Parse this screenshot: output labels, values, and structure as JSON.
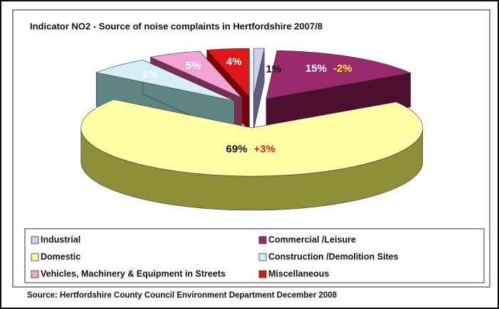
{
  "chart_data": {
    "type": "pie3d",
    "title": "Indicator NO2 - Source of noise complaints in Hertfordshire 2007/8",
    "categories": [
      "Industrial",
      "Commercial /Leisure",
      "Domestic",
      "Construction /Demolition Sites",
      "Vehicles, Machinery & Equipment in Streets",
      "Miscellaneous"
    ],
    "values": [
      1,
      15,
      69,
      6,
      5,
      4
    ],
    "value_labels": [
      "1%",
      "15%",
      "69%",
      "6%",
      "5%",
      "4%"
    ],
    "colors": [
      "#cfcfee",
      "#9b2a6c",
      "#ffffa6",
      "#d6eff6",
      "#f2a4d2",
      "#e0161a"
    ],
    "side_colors": [
      "#5c5c84",
      "#4e0e30",
      "#8f8f3a",
      "#5f8585",
      "#7d2d55",
      "#7c0000"
    ],
    "annotations": [
      {
        "category": "Commercial /Leisure",
        "text": "-2%"
      },
      {
        "category": "Domestic",
        "text": "+3%"
      }
    ],
    "legend": "bottom",
    "source": "Source: Hertfordshire County Council Environment Department December 2008"
  }
}
